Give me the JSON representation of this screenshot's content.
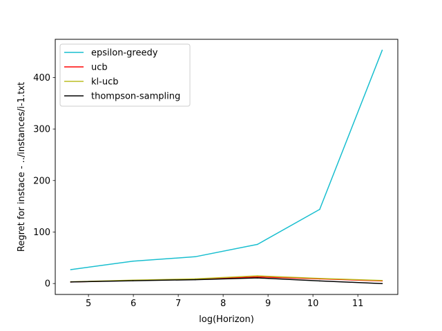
{
  "chart_data": {
    "type": "line",
    "xlabel": "log(Horizon)",
    "ylabel": "Regret for instace - ../instances/i-1.txt",
    "xlim": [
      4.26,
      11.89
    ],
    "ylim": [
      -21.2,
      474.2
    ],
    "xticks": [
      5,
      6,
      7,
      8,
      9,
      10,
      11
    ],
    "yticks": [
      0,
      100,
      200,
      300,
      400
    ],
    "legend_position": "upper left",
    "grid": false,
    "x": [
      4.605,
      5.991,
      7.378,
      8.764,
      10.15,
      11.542
    ],
    "series": [
      {
        "name": "epsilon-greedy",
        "color": "#17becf",
        "values": [
          27,
          43.5,
          52,
          76,
          144,
          453
        ]
      },
      {
        "name": "ucb",
        "color": "#ff0000",
        "values": [
          3,
          6,
          8,
          13,
          9,
          5
        ]
      },
      {
        "name": "kl-ucb",
        "color": "#bcbd22",
        "values": [
          3.5,
          6.5,
          9,
          15,
          10,
          6
        ]
      },
      {
        "name": "thompson-sampling",
        "color": "#000000",
        "values": [
          3,
          5.5,
          7.5,
          11,
          5,
          0
        ]
      }
    ]
  }
}
